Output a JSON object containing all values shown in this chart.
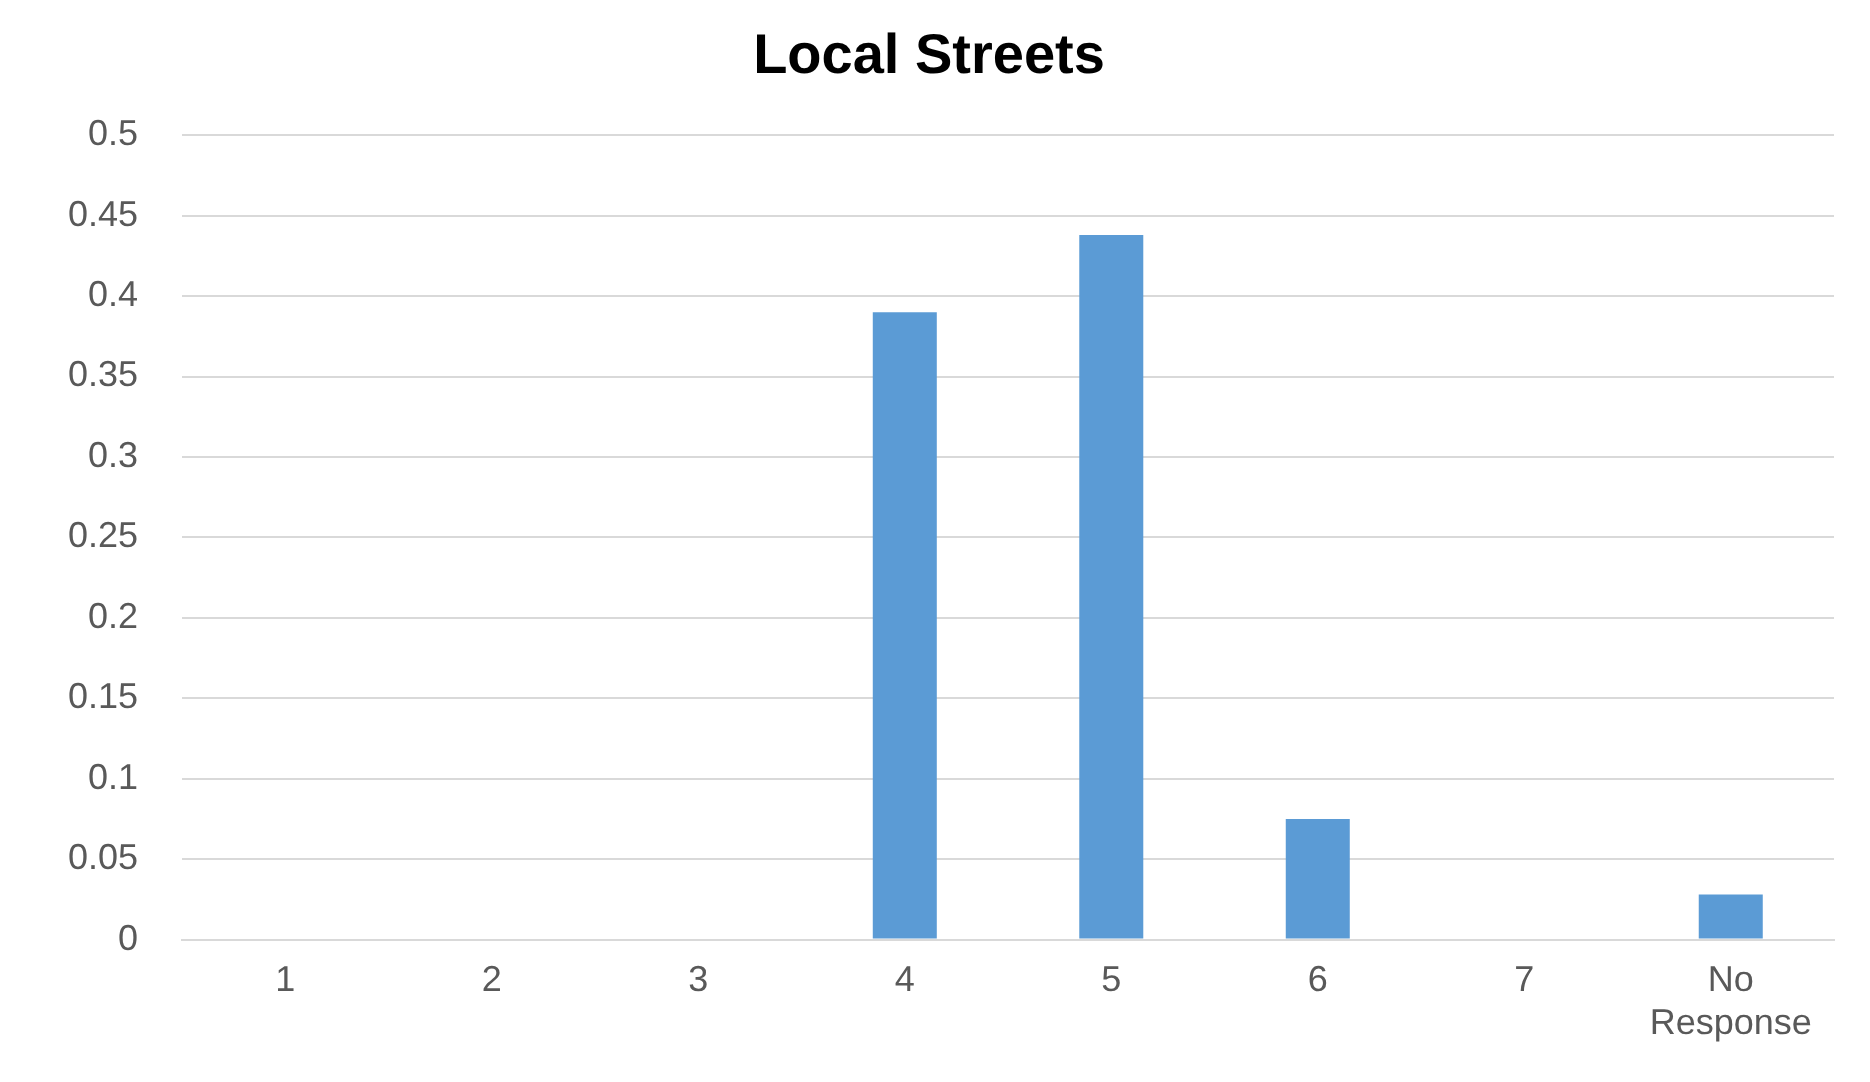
{
  "chart_data": {
    "type": "bar",
    "title": "Local Streets",
    "categories": [
      "1",
      "2",
      "3",
      "4",
      "5",
      "6",
      "7",
      "No Response"
    ],
    "values": [
      0,
      0,
      0,
      0.39,
      0.438,
      0.075,
      0,
      0.028
    ],
    "color": "#5b9bd5",
    "ylim": [
      0,
      0.5
    ],
    "yticks": [
      0,
      0.05,
      0.1,
      0.15,
      0.2,
      0.25,
      0.3,
      0.35,
      0.4,
      0.45,
      0.5
    ],
    "grid": "y"
  }
}
